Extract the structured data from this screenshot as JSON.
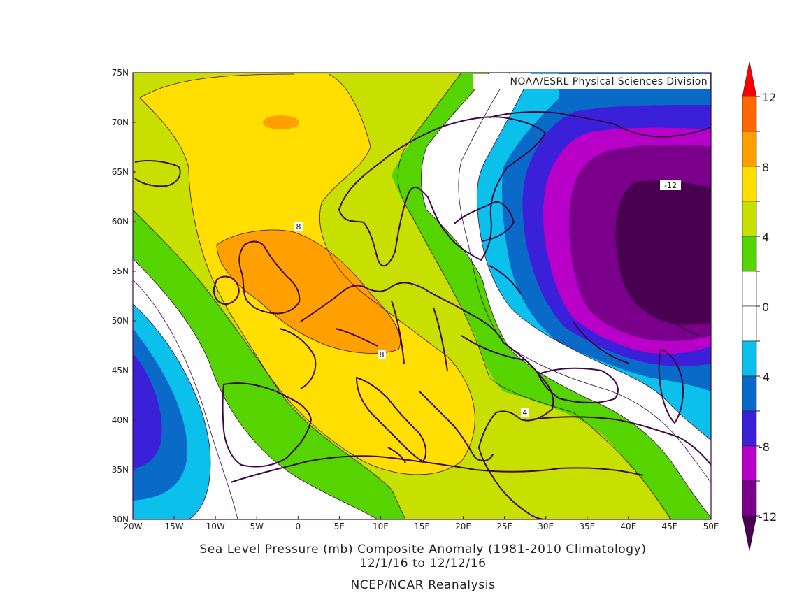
{
  "credit": "NOAA/ESRL Physical Sciences Division",
  "caption": {
    "line1": "Sea Level Pressure (mb) Composite Anomaly (1981-2010 Climatology)",
    "line2": "12/1/16  to 12/12/16",
    "line3": "NCEP/NCAR Reanalysis"
  },
  "map": {
    "x_ticks": [
      "20W",
      "15W",
      "10W",
      "5W",
      "0",
      "5E",
      "10E",
      "15E",
      "20E",
      "25E",
      "30E",
      "35E",
      "40E",
      "45E",
      "50E"
    ],
    "y_ticks": [
      "75N",
      "70N",
      "65N",
      "60N",
      "55N",
      "50N",
      "45N",
      "40N",
      "35N",
      "30N"
    ],
    "lon_range": [
      -20,
      50
    ],
    "lat_range": [
      30,
      75
    ],
    "contour_labels": [
      {
        "text": "8",
        "lon": 0,
        "lat": 59.5
      },
      {
        "text": "8",
        "lon": 10,
        "lat": 46.6
      },
      {
        "text": "4",
        "lon": 27,
        "lat": 40.7
      },
      {
        "text": "-12",
        "lon": 45,
        "lat": 63.7
      }
    ]
  },
  "colorbar": {
    "labels": [
      "12",
      "8",
      "4",
      "0",
      "-4",
      "-8",
      "-12"
    ],
    "colors": [
      "#ff0000",
      "#ff6600",
      "#ff9f00",
      "#ffde00",
      "#c8e000",
      "#55d400",
      "#ffffff",
      "#ffffff",
      "#0bc0ea",
      "#0a6ac8",
      "#3a20d8",
      "#b800c8",
      "#7a008c",
      "#4a0050"
    ]
  },
  "colors": {
    "orange": "#ff9f00",
    "yellow": "#ffde00",
    "yellowgreen": "#c8e000",
    "green": "#55d400",
    "white": "#ffffff",
    "cyan": "#0bc0ea",
    "blue": "#0a6ac8",
    "indigo": "#3a20d8",
    "magenta": "#b800c8",
    "purple": "#7a008c",
    "darkpurple": "#4a0050",
    "coast": "#3b0a45"
  }
}
